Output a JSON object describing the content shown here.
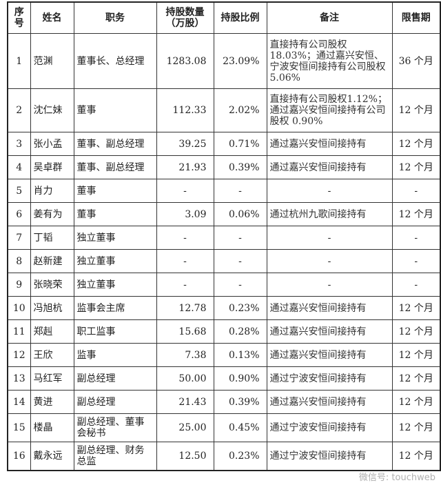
{
  "headers": [
    "序号",
    "姓名",
    "职务",
    "持股数量（万股）",
    "持股比例",
    "备注",
    "限售期"
  ],
  "rows": [
    {
      "no": "1",
      "name": "范渊",
      "role": "董事长、总经理",
      "shares": "1283.08",
      "ratio": "23.09%",
      "note": "直接持有公司股权18.03%；通过嘉兴安恒、宁波安恒间接持有公司股权 5.06%",
      "lockup": "36 个月"
    },
    {
      "no": "2",
      "name": "沈仁妹",
      "role": "董事",
      "shares": "112.33",
      "ratio": "2.02%",
      "note": "直接持有公司股权1.12%；通过嘉兴安恒间接持有公司股权 0.90%",
      "lockup": "12 个月"
    },
    {
      "no": "3",
      "name": "张小孟",
      "role": "董事、副总经理",
      "shares": "39.25",
      "ratio": "0.71%",
      "note": "通过嘉兴安恒间接持有",
      "lockup": "12 个月"
    },
    {
      "no": "4",
      "name": "吴卓群",
      "role": "董事、副总经理",
      "shares": "21.93",
      "ratio": "0.39%",
      "note": "通过嘉兴安恒间接持有",
      "lockup": "12 个月"
    },
    {
      "no": "5",
      "name": "肖力",
      "role": "董事",
      "shares": "-",
      "ratio": "-",
      "note": "-",
      "lockup": "-"
    },
    {
      "no": "6",
      "name": "姜有为",
      "role": "董事",
      "shares": "3.09",
      "ratio": "0.06%",
      "note": "通过杭州九歌间接持有",
      "lockup": "12 个月"
    },
    {
      "no": "7",
      "name": "丁韬",
      "role": "独立董事",
      "shares": "-",
      "ratio": "-",
      "note": "-",
      "lockup": "-"
    },
    {
      "no": "8",
      "name": "赵新建",
      "role": "独立董事",
      "shares": "-",
      "ratio": "-",
      "note": "-",
      "lockup": "-"
    },
    {
      "no": "9",
      "name": "张晓荣",
      "role": "独立董事",
      "shares": "-",
      "ratio": "-",
      "note": "-",
      "lockup": "-"
    },
    {
      "no": "10",
      "name": "冯旭杭",
      "role": "监事会主席",
      "shares": "12.78",
      "ratio": "0.23%",
      "note": "通过嘉兴安恒间接持有",
      "lockup": "12 个月"
    },
    {
      "no": "11",
      "name": "郑赳",
      "role": "职工监事",
      "shares": "15.68",
      "ratio": "0.28%",
      "note": "通过嘉兴安恒间接持有",
      "lockup": "12 个月"
    },
    {
      "no": "12",
      "name": "王欣",
      "role": "监事",
      "shares": "7.38",
      "ratio": "0.13%",
      "note": "通过嘉兴安恒间接持有",
      "lockup": "12 个月"
    },
    {
      "no": "13",
      "name": "马红军",
      "role": "副总经理",
      "shares": "50.00",
      "ratio": "0.90%",
      "note": "通过宁波安恒间接持有",
      "lockup": "12 个月"
    },
    {
      "no": "14",
      "name": "黄进",
      "role": "副总经理",
      "shares": "21.43",
      "ratio": "0.39%",
      "note": "通过嘉兴安恒间接持有",
      "lockup": "12 个月"
    },
    {
      "no": "15",
      "name": "楼晶",
      "role": "副总经理、董事会秘书",
      "shares": "25.00",
      "ratio": "0.45%",
      "note": "通过宁波安恒间接持有",
      "lockup": "12 个月"
    },
    {
      "no": "16",
      "name": "戴永远",
      "role": "副总经理、财务总监",
      "shares": "12.50",
      "ratio": "0.23%",
      "note": "通过宁波安恒间接持有",
      "lockup": "12 个月"
    }
  ],
  "watermark": "微信号: touchweb"
}
